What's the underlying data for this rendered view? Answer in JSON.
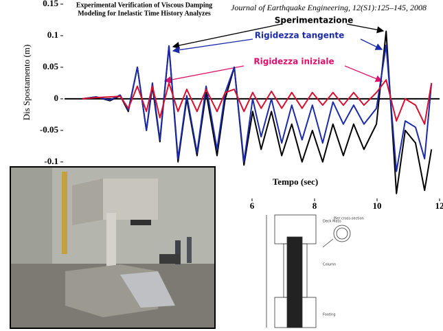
{
  "header": {
    "title_lines": [
      "Experimental Verification of Viscous Damping",
      "Modeling for Inelastic Time History Analyzes"
    ],
    "journal": "Journal of Earthquake Engineering, 12(S1):125–145, 2008"
  },
  "chart_data": {
    "type": "line",
    "xlabel": "Tempo (sec)",
    "ylabel": "Dis Spostamento (m)",
    "xlim": [
      0,
      12
    ],
    "xticks": [
      6,
      8,
      10,
      12
    ],
    "ylim": [
      -0.16,
      0.15
    ],
    "yticks": [
      0.15,
      0.1,
      0.05,
      0,
      -0.05,
      -0.1
    ],
    "x": [
      0.57,
      1.01,
      1.45,
      1.78,
      2.04,
      2.33,
      2.62,
      2.81,
      3.05,
      3.34,
      3.63,
      3.91,
      4.24,
      4.53,
      4.88,
      5.14,
      5.43,
      5.74,
      6.02,
      6.29,
      6.62,
      6.95,
      7.27,
      7.6,
      7.93,
      8.26,
      8.59,
      8.92,
      9.25,
      9.58,
      9.98,
      10.29,
      10.62,
      10.9,
      11.23,
      11.52,
      11.74
    ],
    "series": [
      {
        "name": "Sperimentazione",
        "color": "#000000",
        "values": [
          0,
          0.003,
          -0.003,
          0.005,
          -0.02,
          0.05,
          -0.05,
          0.02,
          -0.068,
          0.083,
          -0.1,
          0,
          -0.09,
          0.01,
          -0.09,
          0,
          0.05,
          -0.105,
          -0.02,
          -0.08,
          -0.02,
          -0.09,
          -0.04,
          -0.1,
          -0.05,
          -0.1,
          -0.04,
          -0.09,
          -0.04,
          -0.08,
          -0.04,
          0.107,
          -0.15,
          -0.05,
          -0.07,
          -0.145,
          -0.08
        ]
      },
      {
        "name": "Rigidezza tangente",
        "color": "#1a2aa8",
        "values": [
          0,
          0.003,
          -0.002,
          0.006,
          -0.018,
          0.05,
          -0.05,
          0.025,
          -0.065,
          0.084,
          -0.095,
          0.005,
          -0.085,
          0.02,
          -0.08,
          0.01,
          0.05,
          -0.1,
          0,
          -0.06,
          0,
          -0.07,
          -0.01,
          -0.065,
          -0.01,
          -0.07,
          -0.005,
          -0.04,
          -0.01,
          -0.04,
          -0.015,
          0.085,
          -0.115,
          -0.035,
          -0.045,
          -0.095,
          0.025
        ]
      },
      {
        "name": "Rigidezza iniziale",
        "color": "#d81030",
        "values": [
          0,
          0.002,
          0.003,
          0.004,
          -0.015,
          0.02,
          -0.02,
          0.02,
          -0.03,
          0.025,
          -0.02,
          0.015,
          -0.02,
          0.015,
          -0.02,
          0.01,
          0.015,
          -0.02,
          0.01,
          -0.015,
          0.012,
          -0.015,
          0.01,
          -0.015,
          0.01,
          -0.01,
          0.01,
          -0.01,
          0.01,
          -0.01,
          0.01,
          0.03,
          -0.035,
          0,
          -0.01,
          -0.04,
          0.025
        ]
      }
    ]
  },
  "drawing": {
    "labels": [
      "Deck Mass",
      "Pier cross-section",
      "Column",
      "Footing"
    ]
  }
}
